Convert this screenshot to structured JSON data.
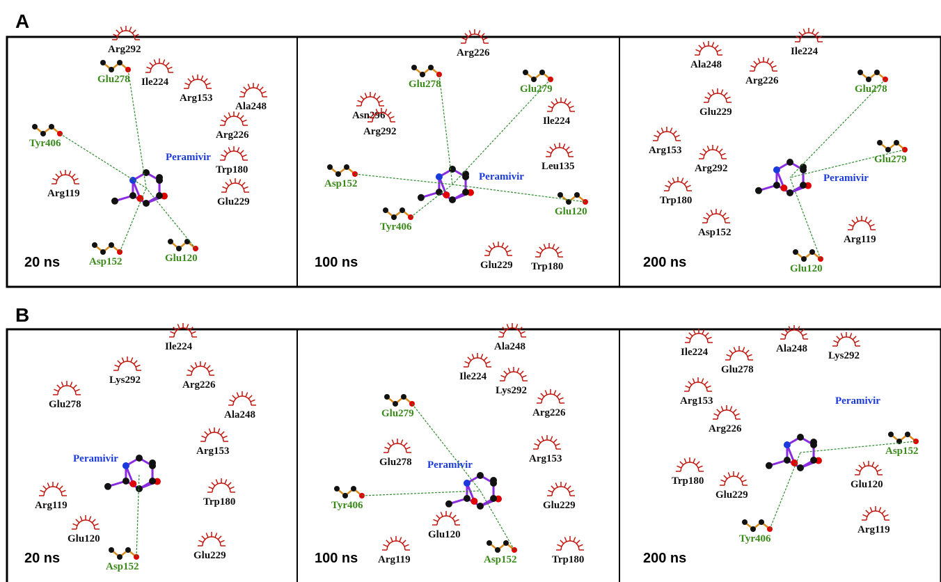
{
  "sections": [
    {
      "label": "A",
      "panels": [
        {
          "time": "20 ns",
          "ligand": "Peramivir",
          "hbond_residues": [
            "Glu278",
            "Tyr406",
            "Asp152",
            "Glu120"
          ],
          "hydrophobic_residues": [
            "Arg292",
            "Ile224",
            "Arg153",
            "Ala248",
            "Arg226",
            "Trp180",
            "Arg119",
            "Glu229"
          ]
        },
        {
          "time": "100 ns",
          "ligand": "Peramivir",
          "hbond_residues": [
            "Glu278",
            "Glu279",
            "Asp152",
            "Glu120",
            "Tyr406"
          ],
          "hydrophobic_residues": [
            "Arg226",
            "Asn296",
            "Ile224",
            "Arg292",
            "Leu135",
            "Glu229",
            "Trp180"
          ]
        },
        {
          "time": "200 ns",
          "ligand": "Peramivir",
          "hbond_residues": [
            "Glu278",
            "Glu279",
            "Glu120"
          ],
          "hydrophobic_residues": [
            "Ile224",
            "Ala248",
            "Arg226",
            "Glu229",
            "Arg153",
            "Arg292",
            "Trp180",
            "Asp152",
            "Arg119"
          ]
        }
      ]
    },
    {
      "label": "B",
      "panels": [
        {
          "time": "20 ns",
          "ligand": "Peramivir",
          "hbond_residues": [
            "Asp152"
          ],
          "hydrophobic_residues": [
            "Ile224",
            "Lys292",
            "Arg226",
            "Glu278",
            "Ala248",
            "Arg153",
            "Arg119",
            "Trp180",
            "Glu120",
            "Glu229"
          ]
        },
        {
          "time": "100 ns",
          "ligand": "Peramivir",
          "hbond_residues": [
            "Glu279",
            "Tyr406",
            "Asp152"
          ],
          "hydrophobic_residues": [
            "Ala248",
            "Ile224",
            "Lys292",
            "Arg226",
            "Arg153",
            "Glu278",
            "Glu229",
            "Glu120",
            "Arg119",
            "Trp180"
          ]
        },
        {
          "time": "200 ns",
          "ligand": "Peramivir",
          "hbond_residues": [
            "Asp152",
            "Tyr406"
          ],
          "hydrophobic_residues": [
            "Ile224",
            "Ala248",
            "Lys292",
            "Glu278",
            "Arg153",
            "Arg226",
            "Trp180",
            "Glu120",
            "Glu229",
            "Arg119"
          ]
        }
      ]
    }
  ]
}
